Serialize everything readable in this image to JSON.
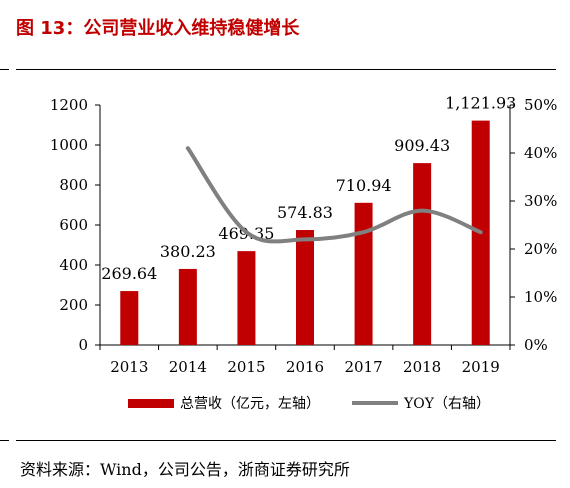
{
  "header": {
    "title": "图 13：公司营业收入维持稳健增长"
  },
  "footer": {
    "source": "资料来源：Wind，公司公告，浙商证券研究所"
  },
  "colors": {
    "title": "#c00000",
    "bar": "#c00000",
    "line": "#808080",
    "axis": "#000000"
  },
  "chart_data": {
    "type": "bar",
    "categories": [
      "2013",
      "2014",
      "2015",
      "2016",
      "2017",
      "2018",
      "2019"
    ],
    "series": [
      {
        "name": "总营收（亿元，左轴）",
        "type": "bar",
        "axis": "left",
        "values": [
          269.64,
          380.23,
          469.35,
          574.83,
          710.94,
          909.43,
          1121.93
        ],
        "labels": [
          "269.64",
          "380.23",
          "469.35",
          "574.83",
          "710.94",
          "909.43",
          "1,121.93"
        ]
      },
      {
        "name": "YOY（右轴）",
        "type": "line",
        "axis": "right",
        "smooth": true,
        "values": [
          null,
          0.41,
          0.235,
          0.22,
          0.235,
          0.28,
          0.235
        ]
      }
    ],
    "y_left": {
      "ylim": [
        0,
        1200
      ],
      "ticks": [
        "0",
        "200",
        "400",
        "600",
        "800",
        "1000",
        "1200"
      ]
    },
    "y_right": {
      "ylim": [
        0,
        0.5
      ],
      "ticks": [
        "0%",
        "10%",
        "20%",
        "30%",
        "40%",
        "50%"
      ]
    },
    "grid": false,
    "legend": "bottom"
  }
}
